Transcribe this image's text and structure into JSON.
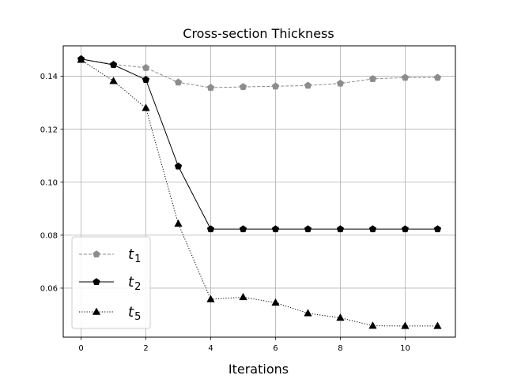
{
  "chart_data": {
    "type": "line",
    "title": "Cross-section Thickness",
    "xlabel": "Iterations",
    "ylabel": "",
    "xlim": [
      -0.55,
      11.55
    ],
    "ylim": [
      0.0415,
      0.1515
    ],
    "xticks": [
      0,
      2,
      4,
      6,
      8,
      10
    ],
    "xtick_labels": [
      "0",
      "2",
      "4",
      "6",
      "8",
      "10"
    ],
    "yticks": [
      0.06,
      0.08,
      0.1,
      0.12,
      0.14
    ],
    "ytick_labels": [
      "0.06",
      "0.08",
      "0.10",
      "0.12",
      "0.14"
    ],
    "grid": true,
    "legend_position": "lower-left",
    "x": [
      0,
      1,
      2,
      3,
      4,
      5,
      6,
      7,
      8,
      9,
      10,
      11
    ],
    "series": [
      {
        "name": "t",
        "subscript": "1",
        "color": "#8c8c8c",
        "line_style": "dashed",
        "marker": "pentagon",
        "values": [
          0.1465,
          0.1445,
          0.1432,
          0.1377,
          0.1357,
          0.136,
          0.1362,
          0.1365,
          0.1373,
          0.139,
          0.1395,
          0.1395
        ]
      },
      {
        "name": "t",
        "subscript": "2",
        "color": "#000000",
        "line_style": "solid",
        "marker": "pentagon",
        "values": [
          0.1465,
          0.1443,
          0.1387,
          0.106,
          0.0823,
          0.0823,
          0.0823,
          0.0823,
          0.0823,
          0.0823,
          0.0823,
          0.0823
        ]
      },
      {
        "name": "t",
        "subscript": "5",
        "color": "#000000",
        "line_style": "dotted",
        "marker": "triangle",
        "values": [
          0.1462,
          0.1382,
          0.128,
          0.0843,
          0.0558,
          0.0566,
          0.0545,
          0.0505,
          0.0488,
          0.0458,
          0.0457,
          0.0457
        ]
      }
    ]
  }
}
